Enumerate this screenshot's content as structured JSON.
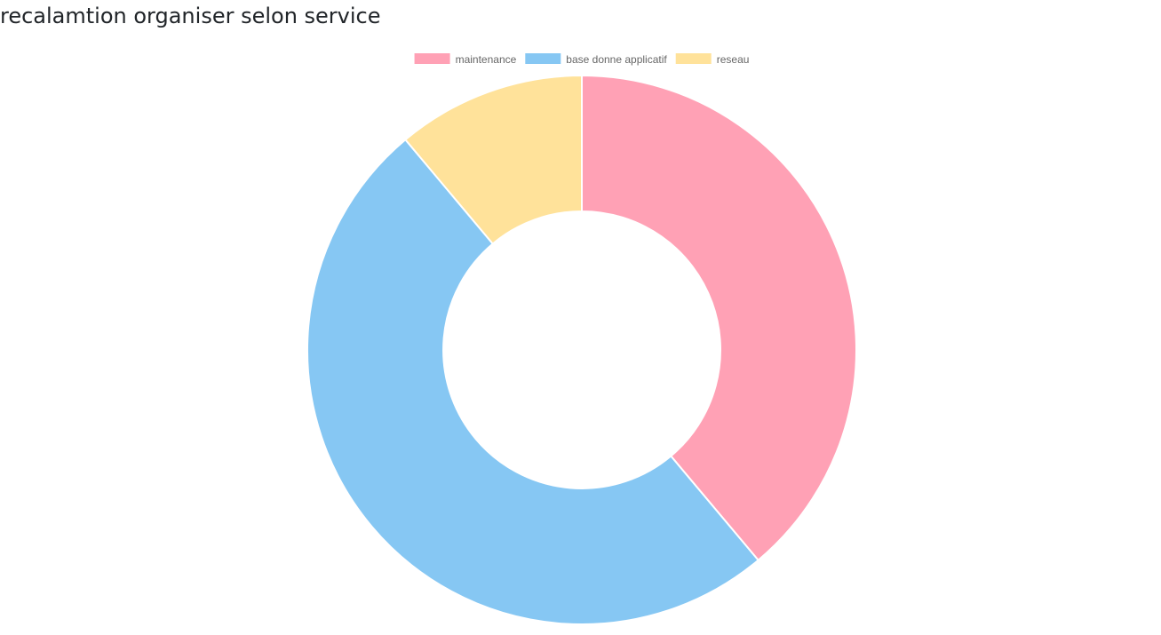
{
  "page": {
    "title": "recalamtion organiser selon service"
  },
  "chart_data": {
    "type": "doughnut",
    "labels": [
      "maintenance",
      "base donne applicatif",
      "reseau"
    ],
    "values": [
      7,
      9,
      2
    ],
    "colors": [
      "#FFA1B5",
      "#86C7F3",
      "#FFE29A"
    ],
    "border_color": "#ffffff",
    "legend_position": "top",
    "start_angle": "top",
    "direction": "clockwise"
  }
}
